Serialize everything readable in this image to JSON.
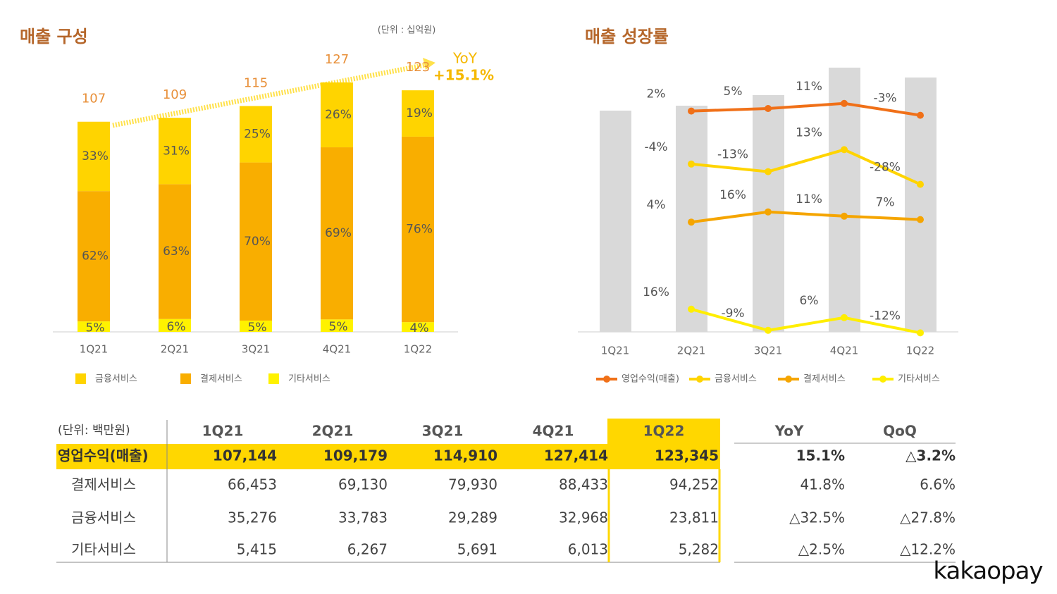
{
  "chart_data": [
    {
      "type": "bar",
      "title": "매출 구성",
      "subtitle": "(단위 : 십억원)",
      "categories": [
        "1Q21",
        "2Q21",
        "3Q21",
        "4Q21",
        "1Q22"
      ],
      "totals": [
        107,
        109,
        115,
        127,
        123
      ],
      "series": [
        {
          "name": "금융서비스",
          "color": "#FFD400",
          "values": [
            33,
            31,
            25,
            26,
            19
          ],
          "value_labels": [
            "33%",
            "31%",
            "25%",
            "26%",
            "19%"
          ]
        },
        {
          "name": "결제서비스",
          "color": "#F9AE00",
          "values": [
            62,
            63,
            70,
            69,
            76
          ],
          "value_labels": [
            "62%",
            "63%",
            "70%",
            "69%",
            "76%"
          ]
        },
        {
          "name": "기타서비스",
          "color": "#FFF200",
          "values": [
            5,
            6,
            5,
            5,
            4
          ],
          "value_labels": [
            "5%",
            "6%",
            "5%",
            "5%",
            "4%"
          ]
        }
      ],
      "annotation": {
        "label": "YoY",
        "value": "+15.1%"
      }
    },
    {
      "type": "line",
      "title": "매출 성장률",
      "categories": [
        "1Q21",
        "2Q21",
        "3Q21",
        "4Q21",
        "1Q22"
      ],
      "series": [
        {
          "name": "영업수익(매출)",
          "color": "#F07018",
          "values": [
            null,
            2,
            5,
            11,
            -3
          ],
          "value_labels": [
            null,
            "2%",
            "5%",
            "11%",
            "-3%"
          ]
        },
        {
          "name": "금융서비스",
          "color": "#FFD400",
          "values": [
            null,
            -4,
            -13,
            13,
            -28
          ],
          "value_labels": [
            null,
            "-4%",
            "-13%",
            "13%",
            "-28%"
          ]
        },
        {
          "name": "결제서비스",
          "color": "#F5A500",
          "values": [
            null,
            4,
            16,
            11,
            7
          ],
          "value_labels": [
            null,
            "4%",
            "16%",
            "11%",
            "7%"
          ]
        },
        {
          "name": "기타서비스",
          "color": "#FFEE00",
          "values": [
            null,
            16,
            -9,
            6,
            -12
          ],
          "value_labels": [
            null,
            "16%",
            "-9%",
            "6%",
            "-12%"
          ]
        }
      ]
    }
  ],
  "table": {
    "unit": "(단위: 백만원)",
    "columns": [
      "1Q21",
      "2Q21",
      "3Q21",
      "4Q21",
      "1Q22",
      "YoY",
      "QoQ"
    ],
    "rows": [
      [
        "영업수익(매출)",
        "107,144",
        "109,179",
        "114,910",
        "127,414",
        "123,345",
        "15.1%",
        "△3.2%"
      ],
      [
        "결제서비스",
        "66,453",
        "69,130",
        "79,930",
        "88,433",
        "94,252",
        "41.8%",
        "6.6%"
      ],
      [
        "금융서비스",
        "35,276",
        "33,783",
        "29,289",
        "32,968",
        "23,811",
        "△32.5%",
        "△27.8%"
      ],
      [
        "기타서비스",
        "5,415",
        "6,267",
        "5,691",
        "6,013",
        "5,282",
        "△2.5%",
        "△12.2%"
      ]
    ]
  },
  "logo": "kakaopay"
}
